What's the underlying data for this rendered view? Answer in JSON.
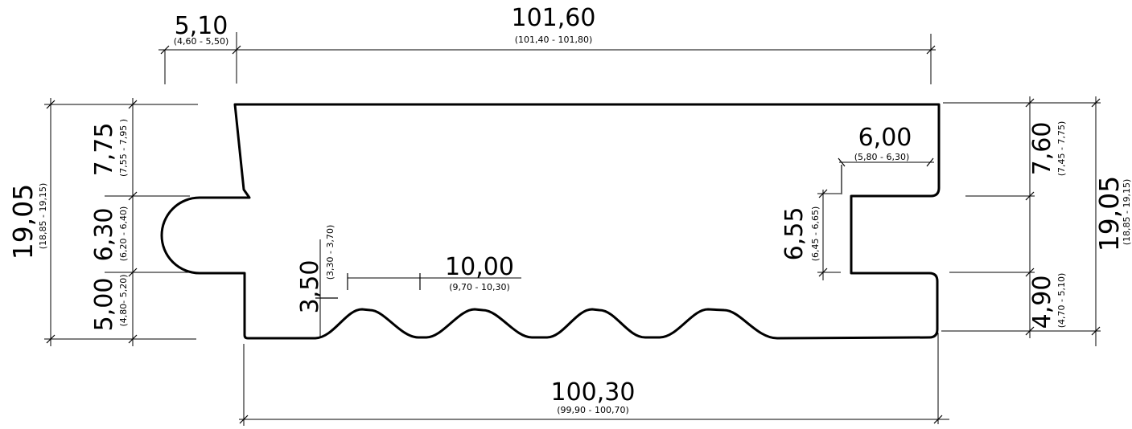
{
  "dimensions": {
    "top_notch": {
      "value": "5,10",
      "tolerance": "(4,60 - 5,50)"
    },
    "top_length": {
      "value": "101,60",
      "tolerance": "(101,40 - 101,80)"
    },
    "bottom_length": {
      "value": "100,30",
      "tolerance": "(99,90 - 100,70)"
    },
    "groove_pitch": {
      "value": "10,00",
      "tolerance": "(9,70 - 10,30)"
    },
    "groove_depth": {
      "value": "3,50",
      "tolerance": "(3,30 - 3,70)"
    },
    "tongue_length": {
      "value": "6,00",
      "tolerance": "(5,80 - 6,30)"
    },
    "tongue_height": {
      "value": "6,55",
      "tolerance": "(6,45 - 6,65)"
    },
    "left_total": {
      "value": "19,05",
      "tolerance": "(18,85 - 19,15)"
    },
    "left_top": {
      "value": "7,75",
      "tolerance": "(7,55 - 7,95 )"
    },
    "left_middle": {
      "value": "6,30",
      "tolerance": "(6,20 - 6,40)"
    },
    "left_bottom": {
      "value": "5,00",
      "tolerance": "(4,80- 5,20)"
    },
    "right_top": {
      "value": "7,60",
      "tolerance": "(7,45 - 7,75)"
    },
    "right_bottom": {
      "value": "4,90",
      "tolerance": "(4,70 - 5,10)"
    },
    "right_total": {
      "value": "19,05",
      "tolerance": "(18,85 - 19,15)"
    }
  }
}
